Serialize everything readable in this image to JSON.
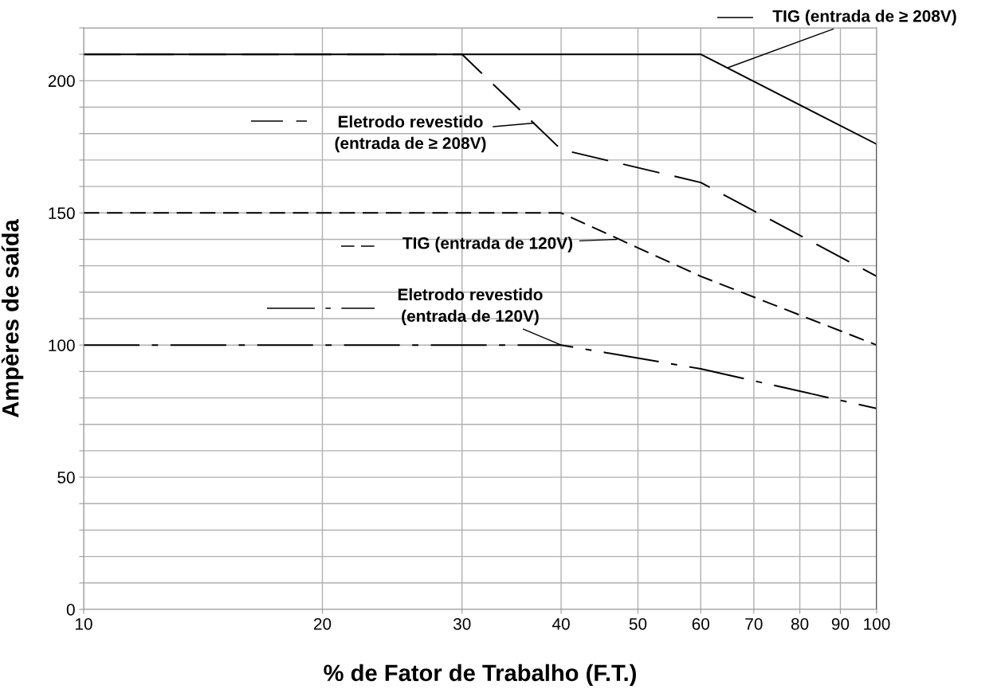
{
  "chart_data": {
    "type": "line",
    "xlabel": "% de Fator de Trabalho (F.T.)",
    "ylabel": "Ampères de saída",
    "log": "x",
    "grid": true,
    "marker": "none",
    "xlim": [
      10,
      100
    ],
    "xticks": [
      10,
      20,
      30,
      40,
      50,
      60,
      70,
      80,
      90,
      100
    ],
    "ylim": [
      0,
      220
    ],
    "yticks": [
      0,
      {
        "value": 10,
        "label": null
      },
      {
        "value": 20,
        "label": null
      },
      {
        "value": 30,
        "label": null
      },
      {
        "value": 40,
        "label": null
      },
      50,
      {
        "value": 60,
        "label": null
      },
      {
        "value": 70,
        "label": null
      },
      {
        "value": 80,
        "label": null
      },
      {
        "value": 90,
        "label": null
      },
      100,
      {
        "value": 110,
        "label": null
      },
      {
        "value": 120,
        "label": null
      },
      {
        "value": 130,
        "label": null
      },
      {
        "value": 140,
        "label": null
      },
      150,
      {
        "value": 160,
        "label": null
      },
      {
        "value": 170,
        "label": null
      },
      {
        "value": 180,
        "label": null
      },
      {
        "value": 190,
        "label": null
      },
      200,
      {
        "value": 210,
        "label": null
      },
      {
        "value": 220,
        "label": null
      }
    ],
    "series": [
      {
        "color": "#000000",
        "line_style": "solid",
        "x": [
          10,
          60,
          100,
          100
        ],
        "values": [
          210,
          210,
          176,
          0
        ]
      },
      {
        "color": "#000000",
        "line_style": "longdash",
        "x": [
          10,
          30,
          40,
          60,
          100
        ],
        "values": [
          210,
          210,
          174,
          161.5,
          126
        ]
      },
      {
        "color": "#000000",
        "line_style": "dashed",
        "x": [
          10,
          40,
          60,
          100
        ],
        "values": [
          150,
          150,
          126,
          100
        ]
      },
      {
        "color": "#000000",
        "line_style": "dashdot",
        "x": [
          10,
          40,
          60,
          100
        ],
        "values": [
          100,
          100,
          91,
          76
        ]
      }
    ],
    "annotations": [
      {
        "text": "TIG (entrada de ≥ 208V)",
        "x": 65,
        "y": 205
      },
      {
        "text": "Eletrodo revestido\n(entrada de ≥ 208V)",
        "x": 37,
        "y": 184
      },
      {
        "text": "TIG (entrada de 120V)",
        "x": 47,
        "y": 140
      },
      {
        "text": "Eletrodo revestido\n(entrada de 120V)",
        "x": 40,
        "y": 100
      }
    ]
  }
}
